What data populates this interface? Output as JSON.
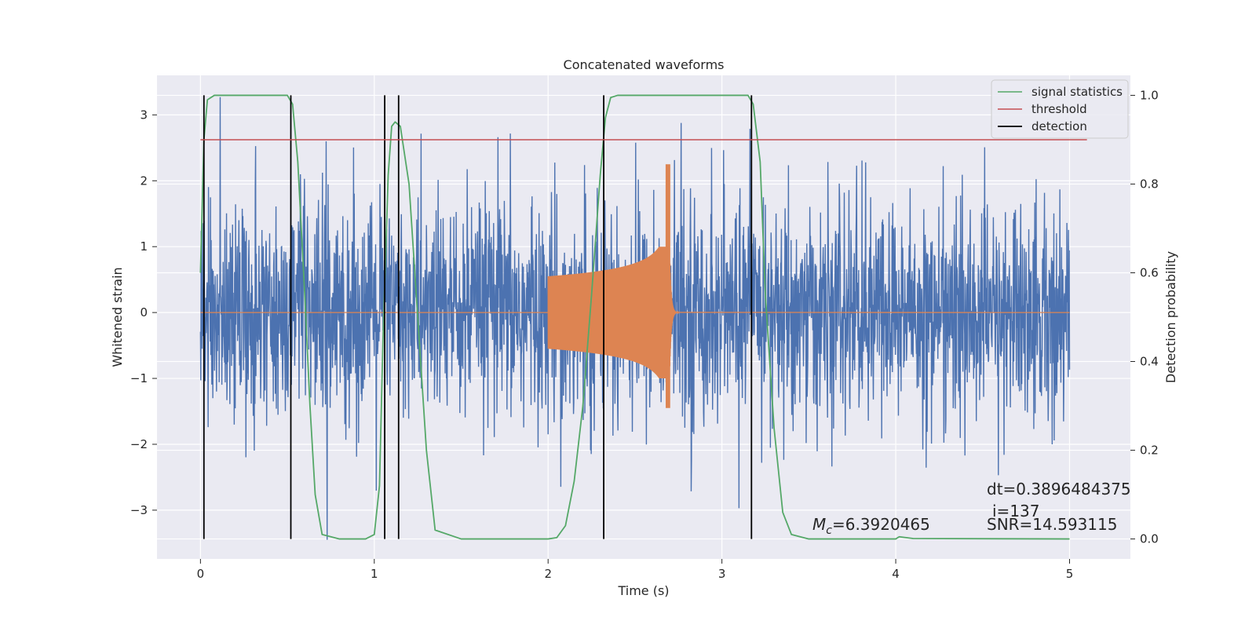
{
  "chart_data": {
    "type": "line",
    "title": "Concatenated waveforms",
    "xlabel": "Time (s)",
    "ylabel": "Whitened strain",
    "y2label": "Detection probability",
    "xlim": [
      -0.25,
      5.35
    ],
    "ylim": [
      -3.74,
      3.6
    ],
    "y2lim": [
      -0.045,
      1.045
    ],
    "xticks": [
      0,
      1,
      2,
      3,
      4,
      5
    ],
    "yticks": [
      -3,
      -2,
      -1,
      0,
      1,
      2,
      3
    ],
    "y2ticks": [
      0.0,
      0.2,
      0.4,
      0.6,
      0.8,
      1.0
    ],
    "y2ticklabels": [
      "0.0",
      "0.2",
      "0.4",
      "0.6",
      "0.8",
      "1.0"
    ],
    "grid": true,
    "legend_position": "top-right",
    "colors": {
      "background": "#eaeaf2",
      "grid": "#ffffff",
      "strain": "#4c72b0",
      "template": "#dd8452",
      "signal_statistics": "#55a868",
      "threshold": "#c44e52",
      "detection": "#000000"
    },
    "series": [
      {
        "name": "signal statistics",
        "axis": "right",
        "x": [
          0.0,
          0.02,
          0.04,
          0.08,
          0.15,
          0.5,
          0.53,
          0.56,
          0.6,
          0.63,
          0.66,
          0.7,
          0.8,
          0.95,
          1.0,
          1.03,
          1.05,
          1.08,
          1.1,
          1.12,
          1.15,
          1.2,
          1.25,
          1.3,
          1.35,
          1.5,
          1.8,
          2.0,
          2.05,
          2.1,
          2.15,
          2.2,
          2.25,
          2.3,
          2.33,
          2.36,
          2.4,
          2.5,
          3.15,
          3.18,
          3.22,
          3.25,
          3.3,
          3.35,
          3.4,
          3.5,
          4.0,
          4.02,
          4.1,
          5.0
        ],
        "y": [
          0.6,
          0.9,
          0.99,
          1.0,
          1.0,
          1.0,
          0.98,
          0.85,
          0.55,
          0.3,
          0.1,
          0.01,
          0.0,
          0.0,
          0.01,
          0.12,
          0.45,
          0.82,
          0.93,
          0.94,
          0.93,
          0.8,
          0.5,
          0.2,
          0.02,
          0.0,
          0.0,
          0.0,
          0.003,
          0.03,
          0.13,
          0.3,
          0.55,
          0.82,
          0.95,
          0.995,
          1.0,
          1.0,
          1.0,
          0.98,
          0.85,
          0.55,
          0.25,
          0.06,
          0.01,
          0.0,
          0.0,
          0.005,
          0.001,
          0.0
        ]
      },
      {
        "name": "threshold",
        "axis": "right",
        "x": [
          0.0,
          5.1
        ],
        "y": [
          0.9,
          0.9
        ]
      },
      {
        "name": "detection",
        "axis": "right",
        "x_positions": [
          0.02,
          0.52,
          1.06,
          1.14,
          2.32,
          3.17
        ],
        "y_range": [
          0.0,
          1.0
        ]
      }
    ],
    "strain": {
      "axis": "left",
      "x_range": [
        0.0,
        5.0
      ],
      "typical_amplitude": 1.0,
      "min": -3.45,
      "max": 3.3
    },
    "template": {
      "axis": "left",
      "x_range": [
        0.0,
        5.0
      ],
      "chirp_start": 2.0,
      "chirp_peak": 2.7,
      "chirp_end": 2.75,
      "start_amplitude": 0.55,
      "peak_positive": 2.25,
      "peak_negative": -1.45
    },
    "annotations": {
      "chirp_mass": {
        "symbol": "M",
        "subscript": "c",
        "text": "=6.3920465"
      },
      "dt_line": "dt=0.3896484375",
      "i_line": "i=137",
      "snr": "SNR=14.593115"
    }
  }
}
